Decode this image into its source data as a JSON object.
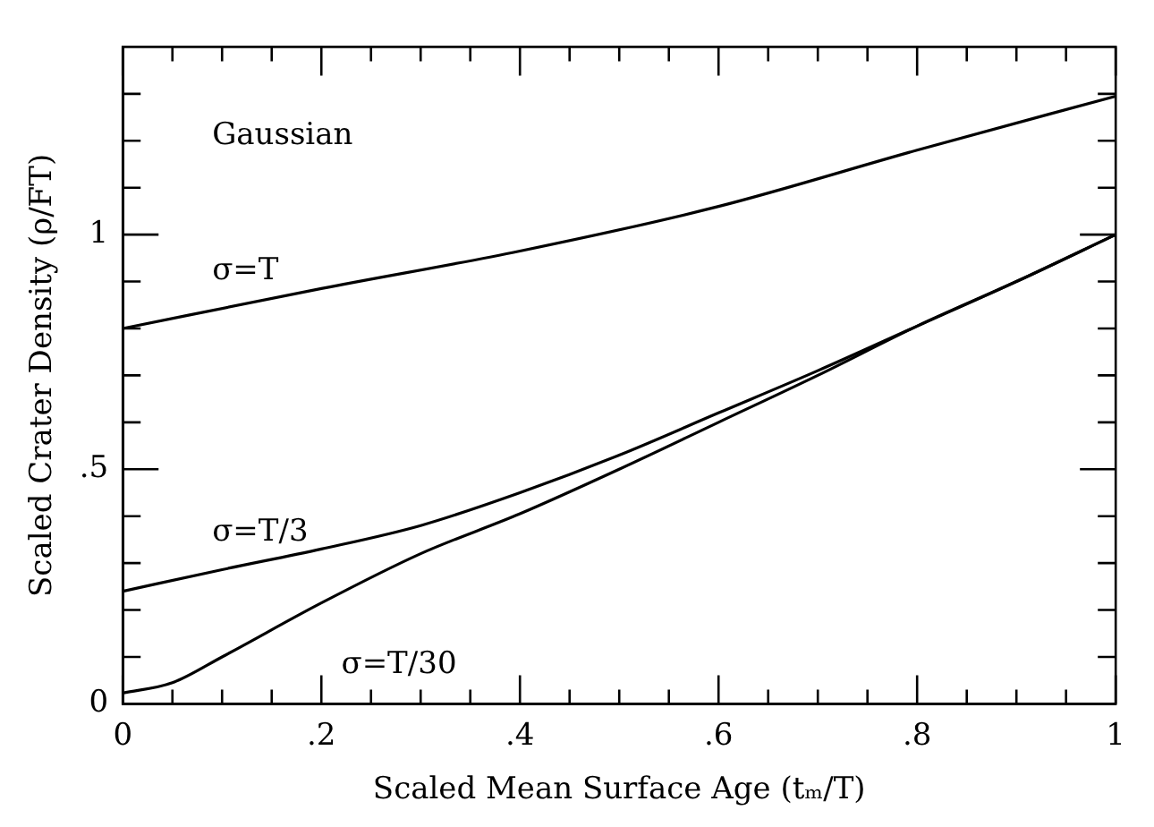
{
  "chart_data": {
    "type": "line",
    "xlabel": "Scaled Mean Surface Age (tₘ/T)",
    "ylabel": "Scaled Crater Density (ρ/FT)",
    "annotations": [
      "Gaussian"
    ],
    "xlim": [
      0,
      1
    ],
    "ylim": [
      0,
      1.4
    ],
    "xticks": [
      0,
      {
        "value": 0.05,
        "label": null
      },
      {
        "value": 0.1,
        "label": null
      },
      {
        "value": 0.15,
        "label": null
      },
      {
        "value": 0.2,
        "label": ".2"
      },
      {
        "value": 0.25,
        "label": null
      },
      {
        "value": 0.3,
        "label": null
      },
      {
        "value": 0.35,
        "label": null
      },
      {
        "value": 0.4,
        "label": ".4"
      },
      {
        "value": 0.45,
        "label": null
      },
      {
        "value": 0.5,
        "label": null
      },
      {
        "value": 0.55,
        "label": null
      },
      {
        "value": 0.6,
        "label": ".6"
      },
      {
        "value": 0.65,
        "label": null
      },
      {
        "value": 0.7,
        "label": null
      },
      {
        "value": 0.75,
        "label": null
      },
      {
        "value": 0.8,
        "label": ".8"
      },
      {
        "value": 0.85,
        "label": null
      },
      {
        "value": 0.9,
        "label": null
      },
      {
        "value": 0.95,
        "label": null
      },
      1
    ],
    "yticks": [
      0,
      {
        "value": 0.1,
        "label": null
      },
      {
        "value": 0.2,
        "label": null
      },
      {
        "value": 0.3,
        "label": null
      },
      {
        "value": 0.4,
        "label": null
      },
      {
        "value": 0.5,
        "label": ".5"
      },
      {
        "value": 0.6,
        "label": null
      },
      {
        "value": 0.7,
        "label": null
      },
      {
        "value": 0.8,
        "label": null
      },
      {
        "value": 0.9,
        "label": null
      },
      1,
      {
        "value": 1.1,
        "label": null
      },
      {
        "value": 1.2,
        "label": null
      },
      {
        "value": 1.3,
        "label": null
      }
    ],
    "grid": false,
    "legend": false,
    "marker": "none",
    "line_style": "solid",
    "series": [
      {
        "name": "σ=T",
        "color": "#000000",
        "x": [
          0,
          0.2,
          0.4,
          0.6,
          0.8,
          1
        ],
        "values": [
          0.8,
          0.885,
          0.965,
          1.06,
          1.18,
          1.295
        ]
      },
      {
        "name": "σ=T/3",
        "color": "#000000",
        "x": [
          0,
          0.1,
          0.2,
          0.3,
          0.4,
          0.5,
          0.6,
          0.7,
          0.8,
          0.9,
          1
        ],
        "values": [
          0.24,
          0.286,
          0.33,
          0.38,
          0.45,
          0.53,
          0.62,
          0.71,
          0.805,
          0.9,
          1.0
        ]
      },
      {
        "name": "σ=T/30",
        "color": "#000000",
        "x": [
          0,
          0.05,
          0.1,
          0.2,
          0.3,
          0.4,
          0.5,
          0.6,
          0.7,
          0.8,
          0.9,
          1
        ],
        "values": [
          0.023,
          0.045,
          0.1,
          0.215,
          0.32,
          0.405,
          0.5,
          0.6,
          0.7,
          0.805,
          0.9,
          1.0
        ]
      }
    ]
  }
}
